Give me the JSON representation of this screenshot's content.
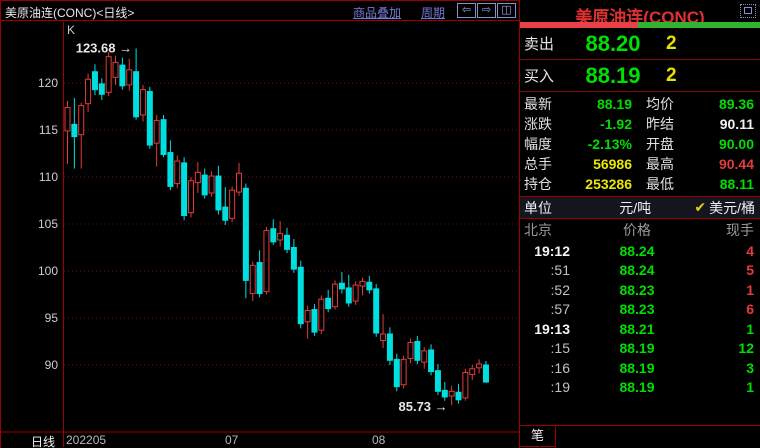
{
  "chart_window": {
    "title": "美原油连(CONC)<日线>",
    "toolbar": {
      "overlay_link": "商品叠加",
      "period_link": "周期",
      "icons": [
        {
          "name": "scroll-left-icon",
          "glyph": "⇦"
        },
        {
          "name": "scroll-right-icon",
          "glyph": "⇨"
        },
        {
          "name": "layout-icon",
          "glyph": "◫"
        }
      ]
    },
    "indicator_label": "K",
    "period_label": "日线"
  },
  "chart_data": {
    "type": "candlestick",
    "title": "美原油连(CONC) 日线",
    "ylabel": "价格",
    "y_ticks": [
      120,
      115,
      110,
      105,
      100,
      95,
      90
    ],
    "ylim": [
      84.5,
      125.5
    ],
    "x_axis_labels": [
      "202205",
      "07",
      "08"
    ],
    "high_annotation": "123.68",
    "low_annotation": "85.73",
    "annotation_arrow": "→",
    "grid": "dotted-horizontal",
    "candles_ohlc": [
      [
        114.9,
        118.1,
        111.4,
        117.4
      ],
      [
        115.6,
        118.4,
        110.9,
        114.3
      ],
      [
        114.5,
        117.9,
        110.9,
        117.6
      ],
      [
        117.8,
        121.0,
        116.9,
        120.4
      ],
      [
        121.2,
        122.0,
        118.7,
        119.3
      ],
      [
        119.9,
        120.5,
        118.2,
        118.8
      ],
      [
        119.0,
        123.3,
        118.6,
        122.8
      ],
      [
        120.6,
        122.9,
        119.8,
        122.2
      ],
      [
        121.9,
        122.7,
        119.3,
        119.7
      ],
      [
        119.8,
        122.6,
        119.2,
        121.4
      ],
      [
        121.2,
        123.68,
        116.1,
        116.4
      ],
      [
        116.6,
        119.8,
        115.9,
        119.3
      ],
      [
        119.1,
        119.6,
        113.0,
        113.4
      ],
      [
        113.6,
        116.6,
        111.1,
        116.0
      ],
      [
        116.1,
        116.6,
        112.1,
        112.4
      ],
      [
        112.6,
        113.9,
        108.6,
        109.0
      ],
      [
        109.3,
        112.3,
        108.8,
        111.7
      ],
      [
        111.5,
        112.1,
        105.4,
        105.9
      ],
      [
        106.2,
        110.0,
        105.7,
        109.6
      ],
      [
        109.4,
        111.6,
        108.3,
        110.5
      ],
      [
        110.2,
        110.9,
        107.7,
        108.1
      ],
      [
        108.3,
        110.6,
        107.9,
        110.1
      ],
      [
        110.1,
        111.2,
        106.0,
        106.5
      ],
      [
        106.8,
        108.9,
        104.9,
        105.4
      ],
      [
        105.6,
        109.0,
        105.2,
        108.6
      ],
      [
        108.4,
        111.5,
        108.0,
        110.4
      ],
      [
        108.8,
        109.3,
        97.1,
        99.0
      ],
      [
        97.6,
        101.0,
        96.8,
        100.6
      ],
      [
        100.9,
        102.2,
        97.2,
        97.6
      ],
      [
        97.8,
        104.7,
        97.5,
        104.3
      ],
      [
        104.5,
        105.5,
        102.8,
        103.1
      ],
      [
        103.3,
        105.3,
        102.6,
        104.0
      ],
      [
        103.8,
        104.6,
        101.9,
        102.3
      ],
      [
        102.5,
        103.4,
        99.8,
        100.2
      ],
      [
        100.4,
        101.1,
        93.9,
        94.4
      ],
      [
        94.6,
        96.3,
        92.8,
        95.8
      ],
      [
        95.9,
        96.5,
        93.1,
        93.5
      ],
      [
        93.7,
        97.4,
        93.3,
        97.0
      ],
      [
        97.1,
        98.0,
        95.6,
        96.0
      ],
      [
        96.2,
        99.0,
        95.9,
        98.6
      ],
      [
        98.7,
        99.9,
        97.6,
        98.1
      ],
      [
        98.2,
        99.6,
        96.2,
        96.6
      ],
      [
        96.8,
        98.9,
        96.4,
        98.5
      ],
      [
        98.4,
        99.3,
        97.4,
        98.9
      ],
      [
        98.8,
        99.5,
        97.6,
        98.0
      ],
      [
        98.1,
        98.6,
        93.0,
        93.4
      ],
      [
        92.6,
        95.4,
        91.8,
        93.3
      ],
      [
        93.3,
        94.0,
        90.0,
        90.5
      ],
      [
        90.6,
        91.2,
        87.2,
        87.7
      ],
      [
        87.9,
        91.0,
        87.5,
        90.6
      ],
      [
        90.7,
        92.8,
        90.2,
        92.4
      ],
      [
        92.5,
        93.1,
        90.1,
        90.5
      ],
      [
        90.3,
        91.9,
        89.6,
        91.5
      ],
      [
        91.6,
        92.2,
        88.9,
        89.3
      ],
      [
        89.4,
        90.1,
        86.8,
        87.2
      ],
      [
        87.3,
        88.2,
        86.2,
        86.6
      ],
      [
        86.7,
        87.8,
        85.73,
        87.2
      ],
      [
        87.1,
        88.0,
        85.9,
        86.3
      ],
      [
        86.5,
        89.6,
        86.2,
        89.2
      ],
      [
        89.0,
        90.0,
        88.4,
        89.6
      ],
      [
        89.7,
        90.6,
        89.1,
        90.11
      ],
      [
        90.0,
        90.44,
        88.11,
        88.19
      ]
    ],
    "colors": {
      "up": "#e23b3b",
      "down": "#00dfdf",
      "grid": "#701010",
      "axis": "#a00000",
      "tick_text": "#cdcdcd"
    }
  },
  "quote_panel": {
    "title": "美原油连(CONC)",
    "ratio_bar": {
      "red_pct": 49,
      "green_pct": 51,
      "red": "#ea4048",
      "green": "#30b430"
    },
    "sell": {
      "label": "卖出",
      "price": "88.20",
      "size": "2"
    },
    "buy": {
      "label": "买入",
      "price": "88.19",
      "size": "2"
    },
    "stats": [
      {
        "label": "最新",
        "value": "88.19",
        "color": "green"
      },
      {
        "label": "均价",
        "value": "89.36",
        "color": "green"
      },
      {
        "label": "涨跌",
        "value": "-1.92",
        "color": "green"
      },
      {
        "label": "昨结",
        "value": "90.11",
        "color": "white"
      },
      {
        "label": "幅度",
        "value": "-2.13%",
        "color": "green"
      },
      {
        "label": "开盘",
        "value": "90.00",
        "color": "green"
      },
      {
        "label": "总手",
        "value": "56986",
        "color": "yellow"
      },
      {
        "label": "最高",
        "value": "90.44",
        "color": "red"
      },
      {
        "label": "持仓",
        "value": "253286",
        "color": "yellow"
      },
      {
        "label": "最低",
        "value": "88.11",
        "color": "green"
      }
    ],
    "unit_row": {
      "label": "单位",
      "value1": "元/吨",
      "check": "✔",
      "value2": "美元/桶"
    },
    "tick_table": {
      "headers": {
        "time": "北京",
        "price": "价格",
        "lots": "现手"
      },
      "rows": [
        {
          "time": "19:12",
          "strong": true,
          "price": "88.24",
          "lots": "4",
          "lots_color": "red"
        },
        {
          "time": ":51",
          "strong": false,
          "price": "88.24",
          "lots": "5",
          "lots_color": "red"
        },
        {
          "time": ":52",
          "strong": false,
          "price": "88.23",
          "lots": "1",
          "lots_color": "red"
        },
        {
          "time": ":57",
          "strong": false,
          "price": "88.23",
          "lots": "6",
          "lots_color": "red"
        },
        {
          "time": "19:13",
          "strong": true,
          "price": "88.21",
          "lots": "1",
          "lots_color": "green"
        },
        {
          "time": ":15",
          "strong": false,
          "price": "88.19",
          "lots": "12",
          "lots_color": "green"
        },
        {
          "time": ":16",
          "strong": false,
          "price": "88.19",
          "lots": "3",
          "lots_color": "green"
        },
        {
          "time": ":19",
          "strong": false,
          "price": "88.19",
          "lots": "1",
          "lots_color": "green"
        }
      ]
    },
    "bottom_tab": "笔",
    "status_colors": {
      "green": "#00dd00",
      "red": "#e23b3b",
      "yellow": "#e8e800",
      "title_red": "#e03030"
    }
  }
}
